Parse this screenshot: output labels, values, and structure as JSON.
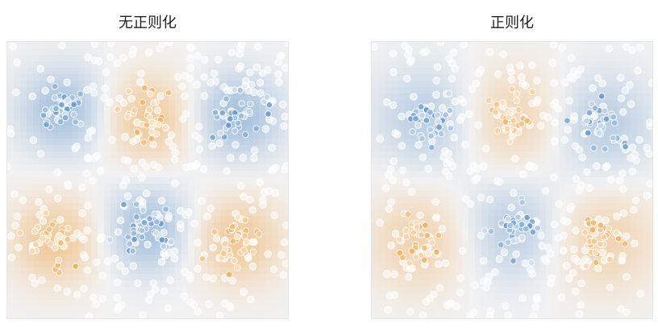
{
  "chart_data": [
    {
      "type": "scatter",
      "title": "无正则化",
      "background": "decision-heatmap",
      "colors": {
        "blue": "#4a86c5",
        "orange": "#f0a040",
        "neutral": "#f2f2f2"
      },
      "clusters": [
        {
          "class": "blue",
          "center": [
            0.2,
            0.25
          ]
        },
        {
          "class": "orange",
          "center": [
            0.5,
            0.28
          ]
        },
        {
          "class": "blue",
          "center": [
            0.82,
            0.27
          ]
        },
        {
          "class": "orange",
          "center": [
            0.17,
            0.72
          ]
        },
        {
          "class": "blue",
          "center": [
            0.5,
            0.68
          ]
        },
        {
          "class": "orange",
          "center": [
            0.82,
            0.72
          ]
        }
      ]
    },
    {
      "type": "scatter",
      "title": "正则化",
      "background": "decision-heatmap",
      "colors": {
        "blue": "#4a86c5",
        "orange": "#f0a040",
        "neutral": "#f2f2f2"
      },
      "clusters": [
        {
          "class": "blue",
          "center": [
            0.2,
            0.28
          ]
        },
        {
          "class": "orange",
          "center": [
            0.5,
            0.28
          ]
        },
        {
          "class": "blue",
          "center": [
            0.82,
            0.3
          ]
        },
        {
          "class": "orange",
          "center": [
            0.17,
            0.72
          ]
        },
        {
          "class": "blue",
          "center": [
            0.5,
            0.68
          ]
        },
        {
          "class": "orange",
          "center": [
            0.82,
            0.72
          ]
        }
      ]
    }
  ]
}
